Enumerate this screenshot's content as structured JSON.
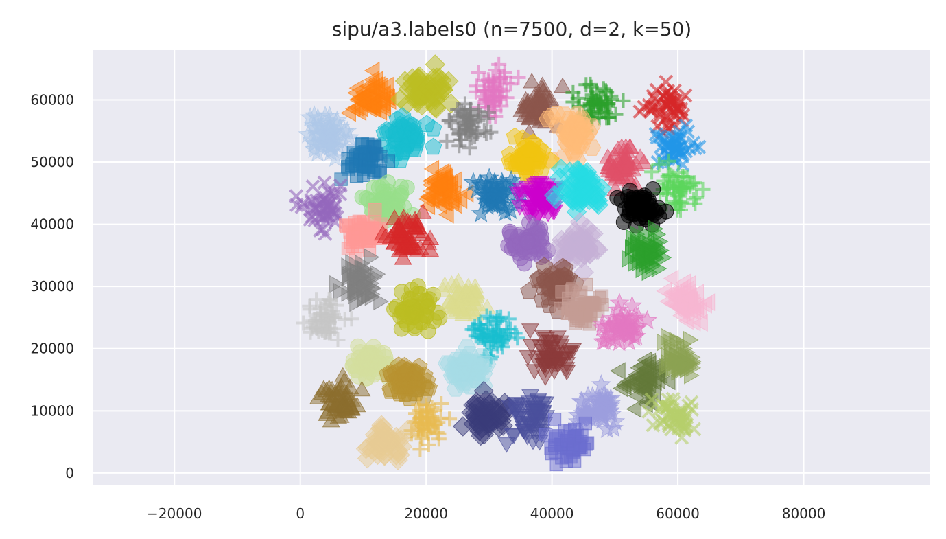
{
  "chart_data": {
    "type": "scatter",
    "title": "sipu/a3.labels0 (n=7500, d=2, k=50)",
    "xlabel": "",
    "ylabel": "",
    "xlim": [
      -33000,
      100000
    ],
    "ylim": [
      -2000,
      68000
    ],
    "xticks": [
      -20000,
      0,
      20000,
      40000,
      60000,
      80000
    ],
    "yticks": [
      0,
      10000,
      20000,
      30000,
      40000,
      50000,
      60000
    ],
    "xtick_labels": [
      "−20000",
      "0",
      "20000",
      "40000",
      "60000",
      "80000"
    ],
    "ytick_labels": [
      "0",
      "10000",
      "20000",
      "30000",
      "40000",
      "50000",
      "60000"
    ],
    "grid": true,
    "background": "#eaeaf2",
    "legend": "none",
    "clusters": [
      {
        "x": 11000,
        "y": 60500,
        "color": "#ff7f0e",
        "marker": "triangle-left"
      },
      {
        "x": 20000,
        "y": 61500,
        "color": "#bcbd22",
        "marker": "diamond"
      },
      {
        "x": 30500,
        "y": 61500,
        "color": "#e377c2",
        "marker": "plus"
      },
      {
        "x": 38000,
        "y": 58500,
        "color": "#8c564b",
        "marker": "triangle-up"
      },
      {
        "x": 47500,
        "y": 59000,
        "color": "#2ca02c",
        "marker": "plus"
      },
      {
        "x": 58000,
        "y": 59000,
        "color": "#d62728",
        "marker": "x"
      },
      {
        "x": 4500,
        "y": 54500,
        "color": "#aec7e8",
        "marker": "star"
      },
      {
        "x": 17000,
        "y": 54500,
        "color": "#17becf",
        "marker": "pentagon"
      },
      {
        "x": 26500,
        "y": 56000,
        "color": "#7f7f7f",
        "marker": "plus"
      },
      {
        "x": 43500,
        "y": 54500,
        "color": "#ffbb78",
        "marker": "hexagon"
      },
      {
        "x": 10500,
        "y": 50500,
        "color": "#1f77b4",
        "marker": "square"
      },
      {
        "x": 36000,
        "y": 50500,
        "color": "#f1c40f",
        "marker": "pentagon"
      },
      {
        "x": 51500,
        "y": 49000,
        "color": "#e05068",
        "marker": "triangle-up"
      },
      {
        "x": 59500,
        "y": 52000,
        "color": "#2196e8",
        "marker": "x"
      },
      {
        "x": 23000,
        "y": 45500,
        "color": "#ff7f0e",
        "marker": "triangle-left"
      },
      {
        "x": 31000,
        "y": 45000,
        "color": "#1f77b4",
        "marker": "star"
      },
      {
        "x": 38000,
        "y": 44000,
        "color": "#cc00cc",
        "marker": "triangle-down"
      },
      {
        "x": 44500,
        "y": 46000,
        "color": "#25dbe3",
        "marker": "diamond"
      },
      {
        "x": 60000,
        "y": 46000,
        "color": "#5cd65c",
        "marker": "plus"
      },
      {
        "x": 3500,
        "y": 42500,
        "color": "#9467bd",
        "marker": "x"
      },
      {
        "x": 14000,
        "y": 43500,
        "color": "#98df8a",
        "marker": "circle"
      },
      {
        "x": 54000,
        "y": 42500,
        "color": "#000000",
        "marker": "circle"
      },
      {
        "x": 10000,
        "y": 38500,
        "color": "#ff9896",
        "marker": "square"
      },
      {
        "x": 16500,
        "y": 37500,
        "color": "#d62728",
        "marker": "triangle-up"
      },
      {
        "x": 36000,
        "y": 37000,
        "color": "#9467bd",
        "marker": "circle"
      },
      {
        "x": 44000,
        "y": 36500,
        "color": "#c5b0d5",
        "marker": "diamond"
      },
      {
        "x": 55000,
        "y": 35500,
        "color": "#2ca02c",
        "marker": "triangle-right"
      },
      {
        "x": 9500,
        "y": 30500,
        "color": "#7f7f7f",
        "marker": "triangle-right"
      },
      {
        "x": 18000,
        "y": 26000,
        "color": "#bcbd22",
        "marker": "circle"
      },
      {
        "x": 26000,
        "y": 27500,
        "color": "#dbdb8d",
        "marker": "triangle-up"
      },
      {
        "x": 40500,
        "y": 30000,
        "color": "#8c564b",
        "marker": "pentagon"
      },
      {
        "x": 44500,
        "y": 26500,
        "color": "#c49c94",
        "marker": "square"
      },
      {
        "x": 61500,
        "y": 27500,
        "color": "#f7b6d2",
        "marker": "triangle-left"
      },
      {
        "x": 4000,
        "y": 24500,
        "color": "#c7c7c7",
        "marker": "plus"
      },
      {
        "x": 30500,
        "y": 22000,
        "color": "#17becf",
        "marker": "plus"
      },
      {
        "x": 51000,
        "y": 23500,
        "color": "#e377c2",
        "marker": "star"
      },
      {
        "x": 40000,
        "y": 19000,
        "color": "#8b3a3a",
        "marker": "triangle-down"
      },
      {
        "x": 11000,
        "y": 17500,
        "color": "#d4df9e",
        "marker": "circle"
      },
      {
        "x": 17000,
        "y": 14500,
        "color": "#b8922f",
        "marker": "pentagon"
      },
      {
        "x": 26500,
        "y": 16000,
        "color": "#a6dbe5",
        "marker": "hexagon"
      },
      {
        "x": 55000,
        "y": 14500,
        "color": "#637939",
        "marker": "triangle-left"
      },
      {
        "x": 60000,
        "y": 18500,
        "color": "#8ca252",
        "marker": "triangle-right"
      },
      {
        "x": 6500,
        "y": 11500,
        "color": "#8b6d2e",
        "marker": "triangle-up"
      },
      {
        "x": 20000,
        "y": 8000,
        "color": "#e7ba52",
        "marker": "plus"
      },
      {
        "x": 29500,
        "y": 9000,
        "color": "#393b79",
        "marker": "diamond"
      },
      {
        "x": 36500,
        "y": 9000,
        "color": "#4a4f9c",
        "marker": "triangle-down"
      },
      {
        "x": 47500,
        "y": 10000,
        "color": "#9c9ede",
        "marker": "star"
      },
      {
        "x": 59500,
        "y": 9000,
        "color": "#b5cf6b",
        "marker": "x"
      },
      {
        "x": 13500,
        "y": 5000,
        "color": "#e7cb94",
        "marker": "diamond"
      },
      {
        "x": 43000,
        "y": 5000,
        "color": "#6b6ecf",
        "marker": "square"
      }
    ]
  }
}
